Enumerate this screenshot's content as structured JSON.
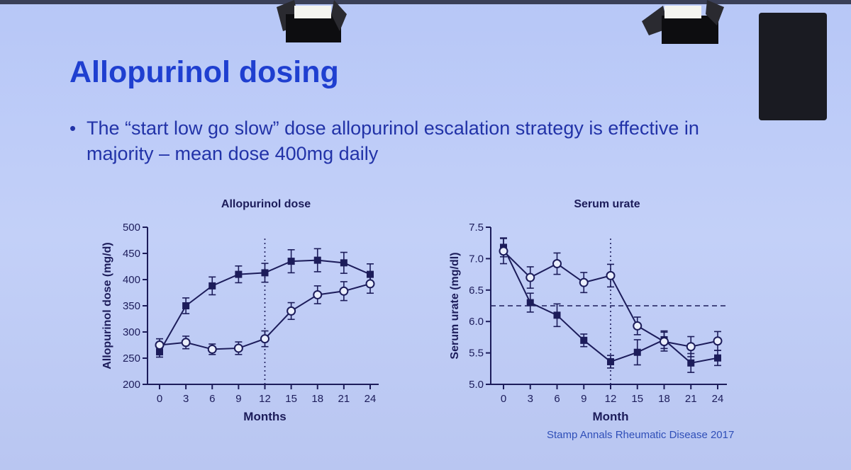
{
  "slide": {
    "title": "Allopurinol dosing",
    "bullet": "The “start low go slow” dose allopurinol escalation strategy is effective in majority – mean dose 400mg daily",
    "citation": "Stamp Annals Rheumatic Disease 2017"
  },
  "colors": {
    "title": "#1f3fd0",
    "ink": "#1c1c5a",
    "text": "#2233a8"
  },
  "chart_data": [
    {
      "type": "line",
      "title": "Allopurinol dose",
      "xlabel": "Months",
      "ylabel": "Allopurinol dose (mg/d)",
      "x": [
        0,
        3,
        6,
        9,
        12,
        15,
        18,
        21,
        24
      ],
      "xlim": [
        -1.5,
        25.5
      ],
      "ylim": [
        200,
        500
      ],
      "yticks": [
        200,
        250,
        300,
        350,
        400,
        450,
        500
      ],
      "ytick_labels": [
        "200",
        "250",
        "300",
        "350",
        "400",
        "450",
        "500"
      ],
      "xtick_labels": [
        "0",
        "3",
        "6",
        "9",
        "12",
        "15",
        "18",
        "21",
        "24"
      ],
      "vline_x": 12,
      "series": [
        {
          "marker": "filled-square",
          "values": [
            262,
            350,
            388,
            410,
            413,
            435,
            437,
            432,
            410
          ],
          "err": [
            10,
            15,
            17,
            16,
            18,
            22,
            22,
            20,
            20
          ]
        },
        {
          "marker": "open-circle",
          "values": [
            275,
            280,
            267,
            269,
            287,
            340,
            371,
            378,
            392
          ],
          "err": [
            12,
            12,
            10,
            12,
            15,
            16,
            17,
            18,
            18
          ]
        }
      ]
    },
    {
      "type": "line",
      "title": "Serum urate",
      "xlabel": "Month",
      "ylabel": "Serum urate (mg/dl)",
      "x": [
        0,
        3,
        6,
        9,
        12,
        15,
        18,
        21,
        24
      ],
      "xlim": [
        -1.5,
        25.5
      ],
      "ylim": [
        5.0,
        7.5
      ],
      "yticks": [
        5.0,
        5.5,
        6.0,
        6.5,
        7.0,
        7.5
      ],
      "ytick_labels": [
        "5.0",
        "5.5",
        "6.0",
        "6.5",
        "7.0",
        "7.5"
      ],
      "xtick_labels": [
        "0",
        "3",
        "6",
        "9",
        "12",
        "15",
        "18",
        "21",
        "24"
      ],
      "vline_x": 12,
      "hline_y": 6.25,
      "series": [
        {
          "marker": "filled-square",
          "values": [
            7.18,
            6.3,
            6.1,
            5.7,
            5.36,
            5.51,
            5.71,
            5.34,
            5.42
          ],
          "err": [
            0.15,
            0.15,
            0.18,
            0.1,
            0.1,
            0.2,
            0.14,
            0.15,
            0.12
          ]
        },
        {
          "marker": "open-circle",
          "values": [
            7.12,
            6.7,
            6.92,
            6.62,
            6.73,
            5.93,
            5.68,
            5.6,
            5.69
          ],
          "err": [
            0.2,
            0.17,
            0.17,
            0.16,
            0.18,
            0.14,
            0.15,
            0.16,
            0.15
          ]
        }
      ]
    }
  ]
}
